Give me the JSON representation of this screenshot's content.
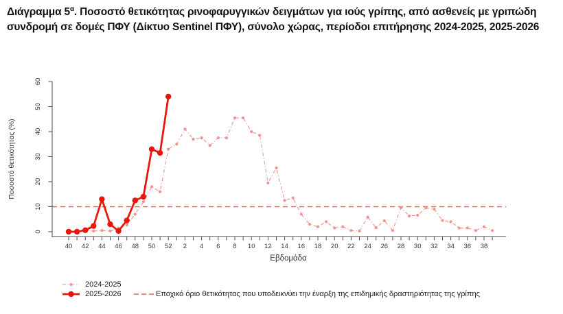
{
  "title": {
    "prefix": "Διάγραμμα 5",
    "superscript": "α",
    "rest": ". Ποσοστό θετικότητας ρινοφαρυγγικών δειγμάτων για ιούς γρίπης, από ασθενείς με γριπώδη συνδρομή σε δομές ΠΦΥ (Δίκτυο Sentinel ΠΦΥ), σύνολο χώρας, περίοδοι επιτήρησης 2024-2025, 2025-2026"
  },
  "chart_data": {
    "type": "line",
    "title": "",
    "xlabel": "Εβδομάδα",
    "ylabel": "Ποσοστό θετικότητας (%)",
    "ylim": [
      0,
      60
    ],
    "yticks": [
      0,
      10,
      20,
      30,
      40,
      50,
      60
    ],
    "grid": false,
    "legend_position": "bottom-left",
    "categories": [
      40,
      41,
      42,
      43,
      44,
      45,
      46,
      47,
      48,
      49,
      50,
      51,
      52,
      1,
      2,
      3,
      4,
      5,
      6,
      7,
      8,
      9,
      10,
      11,
      12,
      13,
      14,
      15,
      16,
      17,
      18,
      19,
      20,
      21,
      22,
      23,
      24,
      25,
      26,
      27,
      28,
      29,
      30,
      31,
      32,
      33,
      34,
      35,
      36,
      37,
      38,
      39
    ],
    "x_labels_shown": [
      40,
      42,
      44,
      46,
      48,
      50,
      52,
      2,
      4,
      6,
      8,
      10,
      12,
      14,
      16,
      18,
      20,
      22,
      24,
      26,
      28,
      30,
      32,
      34,
      36,
      38
    ],
    "series": [
      {
        "name": "2024-2025",
        "color": "#f4918f",
        "line": "dashdot",
        "marker": "small",
        "values": [
          0.3,
          0.3,
          0.5,
          0.3,
          0.5,
          0.3,
          1.4,
          2.7,
          7,
          12,
          18,
          16,
          33,
          35,
          41,
          37,
          37.5,
          34.5,
          37.5,
          37.5,
          45.5,
          45.5,
          40,
          38.5,
          19.5,
          25.5,
          12.5,
          13.5,
          7,
          3,
          2,
          4,
          1.5,
          2,
          0.5,
          0.3,
          5.8,
          1.6,
          4.4,
          0.5,
          9.6,
          6.3,
          6.6,
          9.5,
          9,
          4.5,
          4,
          1.5,
          1.5,
          0.5,
          2,
          0.5
        ]
      },
      {
        "name": "2025-2026",
        "color": "#e8170c",
        "line": "solid",
        "marker": "large",
        "values": [
          0,
          0,
          0.6,
          2.3,
          13,
          3,
          0.3,
          4.5,
          12.5,
          14,
          33,
          31.5,
          54,
          null,
          null,
          null,
          null,
          null,
          null,
          null,
          null,
          null,
          null,
          null,
          null,
          null,
          null,
          null,
          null,
          null,
          null,
          null,
          null,
          null,
          null,
          null,
          null,
          null,
          null,
          null,
          null,
          null,
          null,
          null,
          null,
          null,
          null,
          null,
          null,
          null,
          null,
          null
        ]
      }
    ],
    "threshold": {
      "value": 10,
      "color": "#ec5c5c",
      "label": "Εποχικό όριο θετικότητας που υποδεικνύει την έναρξη της επιδημικής δραστηριότητας της γρίπης"
    }
  },
  "legend": {
    "items": [
      {
        "label": "2024-2025"
      },
      {
        "label": "2025-2026"
      }
    ],
    "threshold_label": "Εποχικό όριο θετικότητας που υποδεικνύει την έναρξη της επιδημικής δραστηριότητας της γρίπης"
  },
  "colors": {
    "axis": "#4a4a4a",
    "tick_text": "#353535",
    "title_text": "#111111"
  }
}
